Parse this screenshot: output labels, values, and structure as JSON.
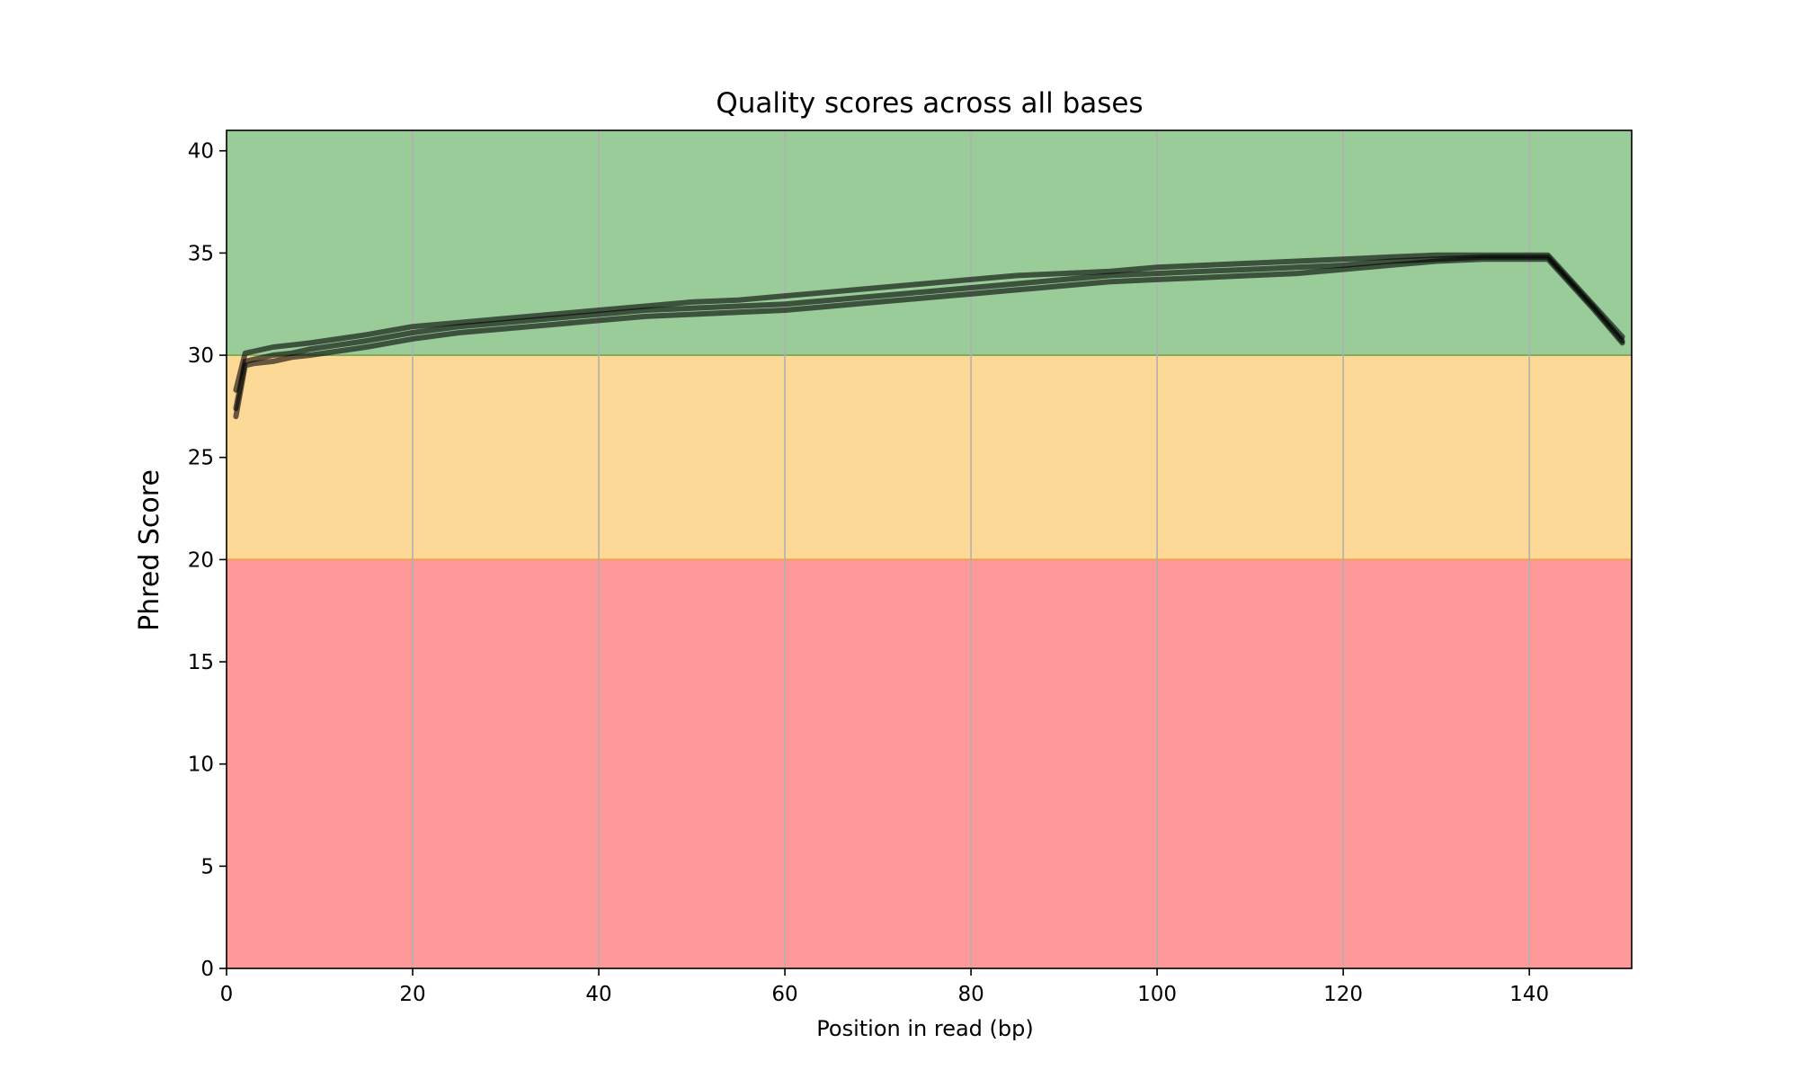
{
  "chart_data": {
    "type": "line",
    "title": "Quality scores across all bases",
    "xlabel": "Position in read (bp)",
    "ylabel": "Phred Score",
    "xlim": [
      0,
      151
    ],
    "ylim": [
      0,
      41
    ],
    "xticks": [
      0,
      20,
      40,
      60,
      80,
      100,
      120,
      140
    ],
    "yticks": [
      0,
      5,
      10,
      15,
      20,
      25,
      30,
      35,
      40
    ],
    "grid": "vertical",
    "bands": [
      {
        "from": 0,
        "to": 20,
        "color": "#ff9999"
      },
      {
        "from": 20,
        "to": 30,
        "color": "#fdd998"
      },
      {
        "from": 30,
        "to": 41,
        "color": "#99cc99"
      }
    ],
    "line_color": "#000000",
    "series": [
      {
        "x": [
          1,
          2,
          3,
          5,
          7,
          9,
          12,
          15,
          20,
          25,
          30,
          35,
          40,
          45,
          50,
          55,
          60,
          65,
          70,
          75,
          80,
          85,
          90,
          95,
          100,
          105,
          110,
          115,
          120,
          125,
          130,
          135,
          140,
          142,
          147,
          150
        ],
        "values": [
          27.4,
          29.7,
          29.8,
          30.0,
          30.1,
          30.3,
          30.5,
          30.7,
          31.1,
          31.4,
          31.6,
          31.8,
          32.0,
          32.2,
          32.3,
          32.4,
          32.5,
          32.7,
          32.9,
          33.1,
          33.3,
          33.5,
          33.7,
          33.9,
          34.0,
          34.1,
          34.2,
          34.3,
          34.4,
          34.6,
          34.7,
          34.8,
          34.8,
          34.8,
          32.3,
          30.7
        ]
      },
      {
        "x": [
          1,
          2,
          3,
          5,
          7,
          9,
          12,
          15,
          20,
          25,
          30,
          35,
          40,
          45,
          50,
          55,
          60,
          65,
          70,
          75,
          80,
          85,
          90,
          95,
          100,
          105,
          110,
          115,
          120,
          125,
          130,
          135,
          140,
          142,
          147,
          150
        ],
        "values": [
          28.3,
          30.1,
          30.2,
          30.4,
          30.5,
          30.6,
          30.8,
          31.0,
          31.4,
          31.6,
          31.8,
          32.0,
          32.2,
          32.4,
          32.6,
          32.7,
          32.9,
          33.1,
          33.3,
          33.5,
          33.7,
          33.9,
          34.0,
          34.1,
          34.3,
          34.4,
          34.5,
          34.6,
          34.7,
          34.8,
          34.9,
          34.9,
          34.9,
          34.9,
          32.4,
          30.9
        ]
      },
      {
        "x": [
          1,
          2,
          3,
          5,
          7,
          9,
          12,
          15,
          20,
          25,
          30,
          35,
          40,
          45,
          50,
          55,
          60,
          65,
          70,
          75,
          80,
          85,
          90,
          95,
          100,
          105,
          110,
          115,
          120,
          125,
          130,
          135,
          140,
          142,
          147,
          150
        ],
        "values": [
          27.0,
          29.5,
          29.6,
          29.7,
          29.9,
          30.0,
          30.2,
          30.4,
          30.8,
          31.1,
          31.3,
          31.5,
          31.7,
          31.9,
          32.0,
          32.1,
          32.2,
          32.4,
          32.6,
          32.8,
          33.0,
          33.2,
          33.4,
          33.6,
          33.7,
          33.8,
          33.9,
          34.0,
          34.2,
          34.4,
          34.6,
          34.7,
          34.7,
          34.7,
          32.2,
          30.6
        ]
      }
    ]
  }
}
